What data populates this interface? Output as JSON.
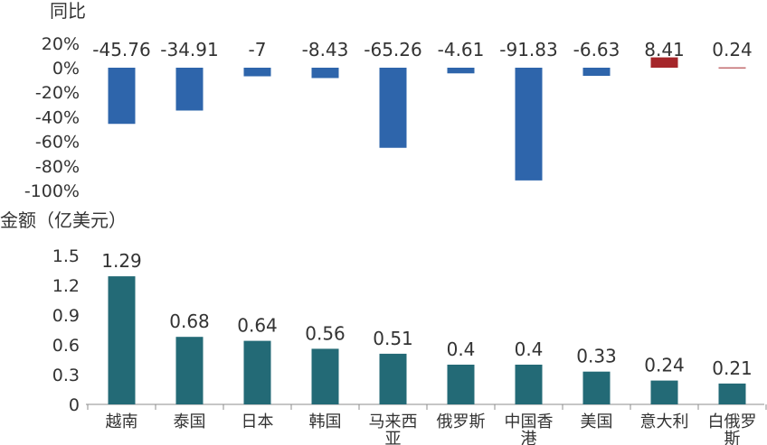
{
  "colors": {
    "neg_bar": "#2e65ab",
    "pos_bar": "#a5262a",
    "amount_bar": "#236a76",
    "axis": "#8c8c8c",
    "text": "#333333"
  },
  "chart_data": [
    {
      "type": "bar",
      "ylabel": "同比",
      "categories": [
        "越南",
        "泰国",
        "日本",
        "韩国",
        "马来西亚",
        "俄罗斯",
        "中国香港",
        "美国",
        "意大利",
        "白俄罗斯"
      ],
      "values": [
        -45.76,
        -34.91,
        -7,
        -8.43,
        -65.26,
        -4.61,
        -91.83,
        -6.63,
        8.41,
        0.24
      ],
      "value_labels": [
        "-45.76",
        "-34.91",
        "-7",
        "-8.43",
        "-65.26",
        "-4.61",
        "-91.83",
        "-6.63",
        "8.41",
        "0.24"
      ],
      "ylim": [
        -100,
        20
      ],
      "yticks": [
        20,
        0,
        -20,
        -40,
        -60,
        -80,
        -100
      ],
      "ytick_labels": [
        "20%",
        "0%",
        "-20%",
        "-40%",
        "-60%",
        "-80%",
        "-100%"
      ],
      "grid": false
    },
    {
      "type": "bar",
      "ylabel": "金额（亿美元）",
      "categories": [
        "越南",
        "泰国",
        "日本",
        "韩国",
        "马来西亚",
        "俄罗斯",
        "中国香港",
        "美国",
        "意大利",
        "白俄罗斯"
      ],
      "category_labels": [
        [
          "越南"
        ],
        [
          "泰国"
        ],
        [
          "日本"
        ],
        [
          "韩国"
        ],
        [
          "马来西",
          "亚"
        ],
        [
          "俄罗斯"
        ],
        [
          "中国香",
          "港"
        ],
        [
          "美国"
        ],
        [
          "意大利"
        ],
        [
          "白俄罗",
          "斯"
        ]
      ],
      "values": [
        1.29,
        0.68,
        0.64,
        0.56,
        0.51,
        0.4,
        0.4,
        0.33,
        0.24,
        0.21
      ],
      "value_labels": [
        "1.29",
        "0.68",
        "0.64",
        "0.56",
        "0.51",
        "0.4",
        "0.4",
        "0.33",
        "0.24",
        "0.21"
      ],
      "ylim": [
        0,
        1.5
      ],
      "yticks": [
        1.5,
        1.2,
        0.9,
        0.6,
        0.3,
        0
      ],
      "ytick_labels": [
        "1.5",
        "1.2",
        "0.9",
        "0.6",
        "0.3",
        "0"
      ],
      "grid": false
    }
  ]
}
